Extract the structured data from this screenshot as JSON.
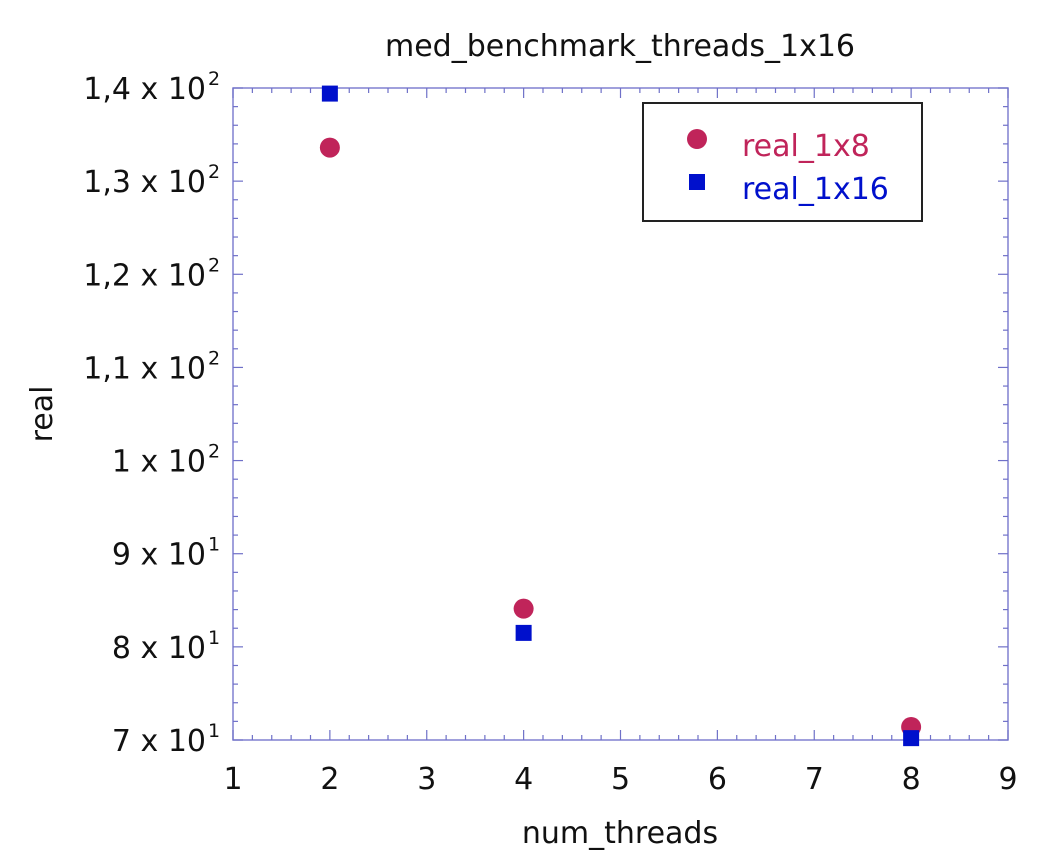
{
  "chart_data": {
    "type": "scatter",
    "title": "med_benchmark_threads_1x16",
    "xlabel": "num_threads",
    "ylabel": "real",
    "xlim": [
      1,
      9
    ],
    "ylim": [
      70,
      140
    ],
    "x_ticks": [
      1,
      2,
      3,
      4,
      5,
      6,
      7,
      8,
      9
    ],
    "y_ticks": [
      {
        "value": 70,
        "mantissa": "7",
        "exponent": "1"
      },
      {
        "value": 80,
        "mantissa": "8",
        "exponent": "1"
      },
      {
        "value": 90,
        "mantissa": "9",
        "exponent": "1"
      },
      {
        "value": 100,
        "mantissa": "1",
        "exponent": "2"
      },
      {
        "value": 110,
        "mantissa": "1,1",
        "exponent": "2"
      },
      {
        "value": 120,
        "mantissa": "1,2",
        "exponent": "2"
      },
      {
        "value": 130,
        "mantissa": "1,3",
        "exponent": "2"
      },
      {
        "value": 140,
        "mantissa": "1,4",
        "exponent": "2"
      }
    ],
    "tick_base_text": "x 10",
    "grid": false,
    "legend_position": "top-right",
    "series": [
      {
        "name": "real_1x8",
        "marker": "circle",
        "color": "#c0245a",
        "x": [
          2,
          4,
          8
        ],
        "y": [
          133.6,
          84.1,
          71.4
        ]
      },
      {
        "name": "real_1x16",
        "marker": "square",
        "color": "#0010cc",
        "x": [
          2,
          4,
          8
        ],
        "y": [
          139.4,
          81.5,
          70.2
        ]
      }
    ],
    "axis_color": "#6f70c8",
    "frame_color": "#8080d0"
  }
}
